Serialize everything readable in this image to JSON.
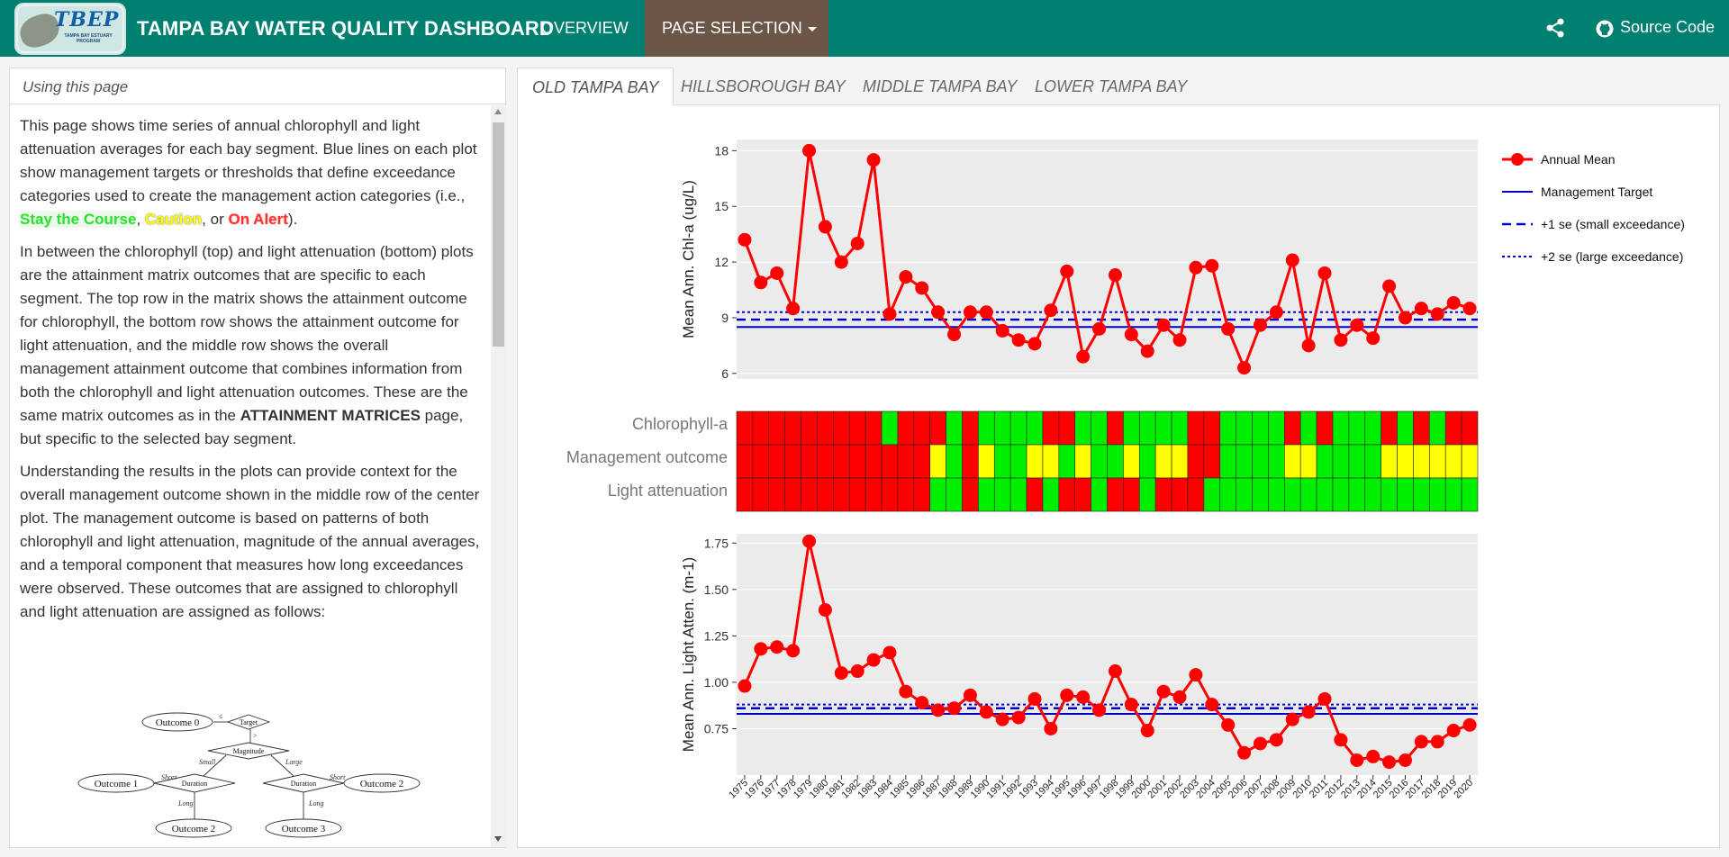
{
  "app": {
    "title": "TAMPA BAY WATER QUALITY DASHBOARD",
    "logo_text": "TBEP",
    "logo_sub": "TAMPA BAY ESTUARY PROGRAM"
  },
  "nav": {
    "overview": "OVERVIEW",
    "page_selection": "PAGE SELECTION",
    "source_code": "Source Code"
  },
  "sidebar": {
    "title": "Using this page",
    "p1_a": "This page shows time series of annual chlorophyll and light attenuation averages for each bay segment. Blue lines on each plot show management targets or thresholds that define exceedance categories used to create the management action categories (i.e., ",
    "cat_green": "Stay the Course",
    "comma1": ", ",
    "cat_yellow": "Caution",
    "or": ", or ",
    "cat_red": "On Alert",
    "p1_end": ").",
    "p2_a": "In between the chlorophyll (top) and light attenuation (bottom) plots are the attainment matrix outcomes that are specific to each segment. The top row in the matrix shows the attainment outcome for chlorophyll, the bottom row shows the attainment outcome for light attenuation, and the middle row shows the overall management attainment outcome that combines information from both the chlorophyll and light attenuation outcomes. These are the same matrix outcomes as in the ",
    "p2_link": "ATTAINMENT MATRICES",
    "p2_b": " page, but specific to the selected bay segment.",
    "p3": "Understanding the results in the plots can provide context for the overall management outcome shown in the middle row of the center plot. The management outcome is based on patterns of both chlorophyll and light attenuation, magnitude of the annual averages, and a temporal component that measures how long exceedances were observed. These outcomes that are assigned to chlorophyll and light attenuation are assigned as follows:",
    "flow": {
      "outcome0": "Outcome 0",
      "outcome1": "Outcome 1",
      "outcome2a": "Outcome 2",
      "outcome2b": "Outcome 2",
      "outcome3": "Outcome 3",
      "target": "Target",
      "magnitude": "Magnitude",
      "duration": "Duration",
      "small": "Small",
      "large": "Large",
      "short": "Short",
      "long": "Long",
      "le": "≤",
      "gt": ">"
    }
  },
  "tabs": [
    {
      "label": "OLD TAMPA BAY",
      "active": true
    },
    {
      "label": "HILLSBOROUGH BAY",
      "active": false
    },
    {
      "label": "MIDDLE TAMPA BAY",
      "active": false
    },
    {
      "label": "LOWER TAMPA BAY",
      "active": false
    }
  ],
  "legend": {
    "annual_mean": "Annual Mean",
    "target": "Management Target",
    "se1": "+1 se (small exceedance)",
    "se2": "+2 se (large exceedance)"
  },
  "colors": {
    "series": "#ff0000",
    "threshold": "#0000cc",
    "green": "#00ee00",
    "yellow": "#ffff00",
    "red": "#ff0000",
    "panel_bg": "#ebebeb"
  },
  "chart_data": [
    {
      "type": "line",
      "ylabel": "Mean Ann. Chl-a (ug/L)",
      "yticks": [
        6,
        9,
        12,
        15,
        18
      ],
      "ylim": [
        5.7,
        18.6
      ],
      "x": [
        1975,
        1976,
        1977,
        1978,
        1979,
        1980,
        1981,
        1982,
        1983,
        1984,
        1985,
        1986,
        1987,
        1988,
        1989,
        1990,
        1991,
        1992,
        1993,
        1994,
        1995,
        1996,
        1997,
        1998,
        1999,
        2000,
        2001,
        2002,
        2003,
        2004,
        2005,
        2006,
        2007,
        2008,
        2009,
        2010,
        2011,
        2012,
        2013,
        2014,
        2015,
        2016,
        2017,
        2018,
        2019,
        2020
      ],
      "values": [
        13.2,
        10.9,
        11.4,
        9.5,
        18.0,
        13.9,
        12.0,
        13.0,
        17.5,
        9.2,
        11.2,
        10.6,
        9.3,
        8.1,
        9.3,
        9.3,
        8.3,
        7.8,
        7.6,
        9.4,
        11.5,
        6.9,
        8.4,
        11.3,
        8.1,
        7.2,
        8.6,
        7.8,
        11.7,
        11.8,
        8.4,
        6.3,
        8.6,
        9.3,
        12.1,
        7.5,
        11.4,
        7.8,
        8.6,
        7.9,
        10.7,
        9.0,
        9.5,
        9.2,
        9.8,
        9.5
      ],
      "target": 8.5,
      "se1": 8.9,
      "se2": 9.3
    },
    {
      "type": "heatmap",
      "rows": [
        "Chlorophyll-a",
        "Management outcome",
        "Light attenuation"
      ],
      "x": [
        1975,
        1976,
        1977,
        1978,
        1979,
        1980,
        1981,
        1982,
        1983,
        1984,
        1985,
        1986,
        1987,
        1988,
        1989,
        1990,
        1991,
        1992,
        1993,
        1994,
        1995,
        1996,
        1997,
        1998,
        1999,
        2000,
        2001,
        2002,
        2003,
        2004,
        2005,
        2006,
        2007,
        2008,
        2009,
        2010,
        2011,
        2012,
        2013,
        2014,
        2015,
        2016,
        2017,
        2018,
        2019,
        2020
      ],
      "chl": [
        "R",
        "R",
        "R",
        "R",
        "R",
        "R",
        "R",
        "R",
        "R",
        "G",
        "R",
        "R",
        "R",
        "G",
        "R",
        "G",
        "G",
        "G",
        "G",
        "R",
        "R",
        "G",
        "G",
        "R",
        "G",
        "G",
        "G",
        "G",
        "R",
        "R",
        "G",
        "G",
        "G",
        "G",
        "R",
        "G",
        "R",
        "G",
        "G",
        "G",
        "R",
        "G",
        "R",
        "G",
        "R",
        "R"
      ],
      "mgmt": [
        "R",
        "R",
        "R",
        "R",
        "R",
        "R",
        "R",
        "R",
        "R",
        "R",
        "R",
        "R",
        "Y",
        "G",
        "R",
        "Y",
        "G",
        "G",
        "Y",
        "Y",
        "G",
        "Y",
        "G",
        "G",
        "Y",
        "G",
        "Y",
        "Y",
        "R",
        "R",
        "G",
        "G",
        "G",
        "G",
        "Y",
        "Y",
        "G",
        "G",
        "G",
        "G",
        "Y",
        "Y",
        "Y",
        "Y",
        "Y",
        "Y"
      ],
      "light": [
        "R",
        "R",
        "R",
        "R",
        "R",
        "R",
        "R",
        "R",
        "R",
        "R",
        "R",
        "R",
        "G",
        "G",
        "R",
        "G",
        "G",
        "G",
        "R",
        "G",
        "R",
        "R",
        "G",
        "R",
        "R",
        "G",
        "R",
        "R",
        "R",
        "G",
        "G",
        "G",
        "G",
        "G",
        "G",
        "G",
        "G",
        "G",
        "G",
        "G",
        "G",
        "G",
        "G",
        "G",
        "G",
        "G"
      ]
    },
    {
      "type": "line",
      "ylabel": "Mean Ann. Light Atten. (m-1)",
      "yticks": [
        0.75,
        1.0,
        1.25,
        1.5,
        1.75
      ],
      "ytick_labels": [
        "0.75",
        "1.00",
        "1.25",
        "1.50",
        "1.75"
      ],
      "ylim": [
        0.5,
        1.8
      ],
      "x": [
        1975,
        1976,
        1977,
        1978,
        1979,
        1980,
        1981,
        1982,
        1983,
        1984,
        1985,
        1986,
        1987,
        1988,
        1989,
        1990,
        1991,
        1992,
        1993,
        1994,
        1995,
        1996,
        1997,
        1998,
        1999,
        2000,
        2001,
        2002,
        2003,
        2004,
        2005,
        2006,
        2007,
        2008,
        2009,
        2010,
        2011,
        2012,
        2013,
        2014,
        2015,
        2016,
        2017,
        2018,
        2019,
        2020
      ],
      "values": [
        0.98,
        1.18,
        1.19,
        1.17,
        1.76,
        1.39,
        1.05,
        1.06,
        1.12,
        1.16,
        0.95,
        0.89,
        0.85,
        0.86,
        0.93,
        0.84,
        0.8,
        0.81,
        0.91,
        0.75,
        0.93,
        0.92,
        0.85,
        1.06,
        0.88,
        0.74,
        0.95,
        0.92,
        1.04,
        0.88,
        0.77,
        0.62,
        0.67,
        0.69,
        0.8,
        0.84,
        0.91,
        0.69,
        0.58,
        0.6,
        0.57,
        0.58,
        0.68,
        0.68,
        0.74,
        0.77
      ],
      "target": 0.83,
      "se1": 0.86,
      "se2": 0.88
    }
  ]
}
